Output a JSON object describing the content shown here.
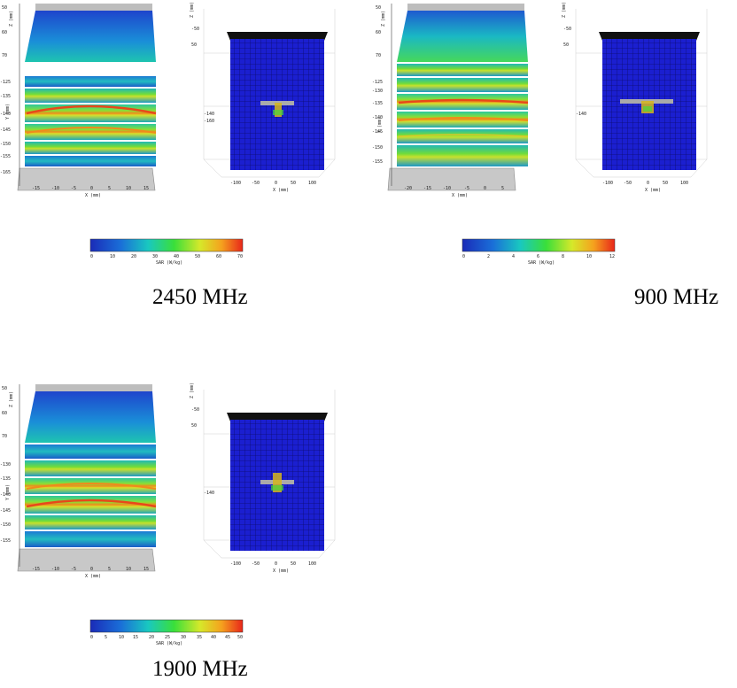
{
  "panels": [
    {
      "caption": "2450 MHz",
      "slices_plot": {
        "top_axis_label": "Z (mm)",
        "side_axis_label": "Y (mm)",
        "z_ticks": [
          "50",
          "60",
          "70"
        ],
        "y_ticks": [
          "-125",
          "-135",
          "-140",
          "-145",
          "-150",
          "-155",
          "-165"
        ],
        "x_ticks": [
          "-15",
          "-10",
          "-5",
          "0",
          "5",
          "10",
          "15"
        ],
        "x_axis_label": "X (mm)"
      },
      "phantom_plot": {
        "z_ticks": [
          "-50",
          "50"
        ],
        "side_axis_label": "Z (mm)",
        "y_ticks": [
          "-140",
          "-160"
        ],
        "x_ticks": [
          "-100",
          "-50",
          "0",
          "50",
          "100"
        ],
        "x_axis_label": "X (mm)"
      },
      "colorbar": {
        "ticks": [
          "0",
          "10",
          "20",
          "30",
          "40",
          "50",
          "60",
          "70"
        ],
        "label": "SAR (W/kg)"
      }
    },
    {
      "caption": "900 MHz",
      "slices_plot": {
        "top_axis_label": "Z (mm)",
        "side_axis_label": "Y (mm)",
        "z_ticks": [
          "50",
          "60",
          "70"
        ],
        "y_ticks": [
          "-125",
          "-130",
          "-135",
          "-140",
          "-145",
          "-150",
          "-155"
        ],
        "x_ticks": [
          "-20",
          "-15",
          "-10",
          "-5",
          "0",
          "5"
        ],
        "x_axis_label": "X (mm)"
      },
      "phantom_plot": {
        "z_ticks": [
          "-50",
          "50"
        ],
        "side_axis_label": "Z (mm)",
        "y_ticks": [
          "-140"
        ],
        "x_ticks": [
          "-100",
          "-50",
          "0",
          "50",
          "100"
        ],
        "x_axis_label": "X (mm)"
      },
      "colorbar": {
        "ticks": [
          "0",
          "2",
          "4",
          "6",
          "8",
          "10",
          "12"
        ],
        "label": "SAR (W/kg)"
      }
    },
    {
      "caption": "1900 MHz",
      "slices_plot": {
        "top_axis_label": "Z (mm)",
        "side_axis_label": "Y (mm)",
        "z_ticks": [
          "50",
          "60",
          "70"
        ],
        "y_ticks": [
          "-130",
          "-135",
          "-140",
          "-145",
          "-150",
          "-155"
        ],
        "x_ticks": [
          "-15",
          "-10",
          "-5",
          "0",
          "5",
          "10",
          "15"
        ],
        "x_axis_label": "X (mm)"
      },
      "phantom_plot": {
        "z_ticks": [
          "-50",
          "50"
        ],
        "side_axis_label": "Z (mm)",
        "y_ticks": [
          "-140"
        ],
        "x_ticks": [
          "-100",
          "-50",
          "0",
          "50",
          "100"
        ],
        "x_axis_label": "X (mm)"
      },
      "colorbar": {
        "ticks": [
          "0",
          "5",
          "10",
          "15",
          "20",
          "25",
          "30",
          "35",
          "40",
          "45",
          "50"
        ],
        "label": "SAR (W/kg)"
      }
    }
  ]
}
